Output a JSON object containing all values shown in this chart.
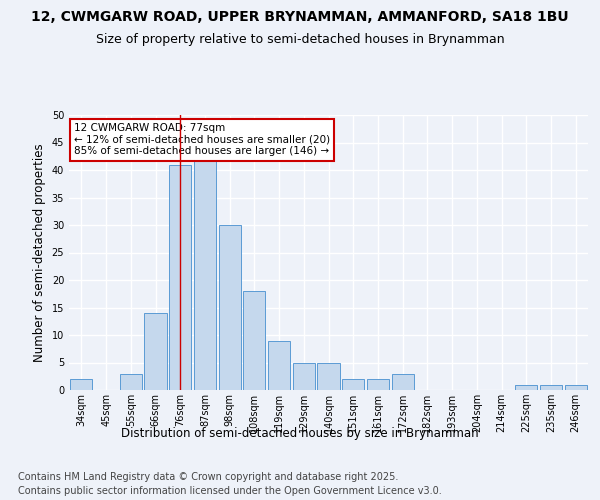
{
  "title_line1": "12, CWMGARW ROAD, UPPER BRYNAMMAN, AMMANFORD, SA18 1BU",
  "title_line2": "Size of property relative to semi-detached houses in Brynamman",
  "xlabel": "Distribution of semi-detached houses by size in Brynamman",
  "ylabel": "Number of semi-detached properties",
  "categories": [
    "34sqm",
    "45sqm",
    "55sqm",
    "66sqm",
    "76sqm",
    "87sqm",
    "98sqm",
    "108sqm",
    "119sqm",
    "129sqm",
    "140sqm",
    "151sqm",
    "161sqm",
    "172sqm",
    "182sqm",
    "193sqm",
    "204sqm",
    "214sqm",
    "225sqm",
    "235sqm",
    "246sqm"
  ],
  "values": [
    2,
    0,
    3,
    14,
    41,
    42,
    30,
    18,
    9,
    5,
    5,
    2,
    2,
    3,
    0,
    0,
    0,
    0,
    1,
    1,
    1
  ],
  "bar_color": "#c5d8ed",
  "bar_edge_color": "#5b9bd5",
  "highlight_bar_index": 4,
  "annotation_text": "12 CWMGARW ROAD: 77sqm\n← 12% of semi-detached houses are smaller (20)\n85% of semi-detached houses are larger (146) →",
  "annotation_box_color": "#ffffff",
  "annotation_box_edge_color": "#cc0000",
  "ylim": [
    0,
    50
  ],
  "yticks": [
    0,
    5,
    10,
    15,
    20,
    25,
    30,
    35,
    40,
    45,
    50
  ],
  "bg_color": "#eef2f9",
  "plot_bg_color": "#eef2f9",
  "grid_color": "#ffffff",
  "footer_line1": "Contains HM Land Registry data © Crown copyright and database right 2025.",
  "footer_line2": "Contains public sector information licensed under the Open Government Licence v3.0.",
  "title_fontsize": 10,
  "subtitle_fontsize": 9,
  "axis_label_fontsize": 8.5,
  "tick_fontsize": 7,
  "footer_fontsize": 7,
  "annotation_fontsize": 7.5
}
